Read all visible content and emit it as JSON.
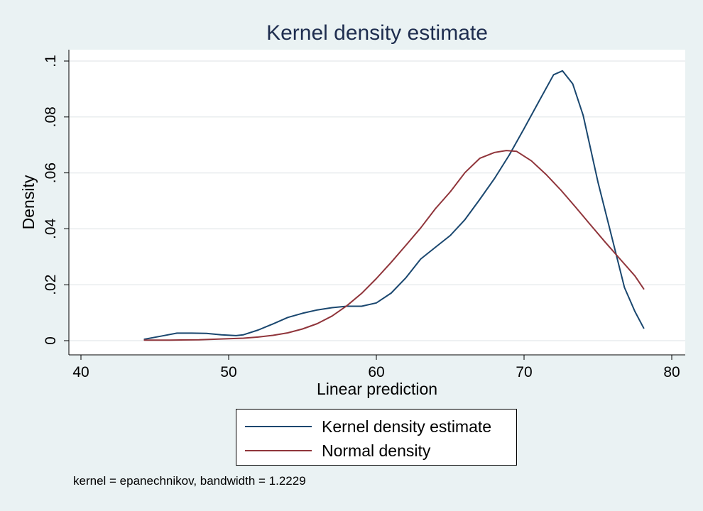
{
  "chart_data": {
    "type": "line",
    "title": "Kernel density estimate",
    "xlabel": "Linear prediction",
    "ylabel": "Density",
    "xlim": [
      40,
      80
    ],
    "ylim": [
      0,
      0.1
    ],
    "xticks": [
      40,
      50,
      60,
      70,
      80
    ],
    "xtick_labels": [
      "40",
      "50",
      "60",
      "70",
      "80"
    ],
    "yticks": [
      0,
      0.02,
      0.04,
      0.06,
      0.08,
      0.1
    ],
    "ytick_labels": [
      "0",
      ".02",
      ".04",
      ".06",
      ".08",
      ".1"
    ],
    "grid": true,
    "legend_position": "bottom",
    "series": [
      {
        "name": "Kernel density estimate",
        "color": "#1a476f",
        "x": [
          44.3,
          45.5,
          46.5,
          47.5,
          48.5,
          49.5,
          50.5,
          51.0,
          52.0,
          53.0,
          54.0,
          55.0,
          56.0,
          57.0,
          58.0,
          59.0,
          60.0,
          61.0,
          62.0,
          63.0,
          64.0,
          65.0,
          66.0,
          67.0,
          68.0,
          69.0,
          70.0,
          71.0,
          72.0,
          72.6,
          73.3,
          74.0,
          75.0,
          76.0,
          76.8,
          77.5,
          78.1
        ],
        "y": [
          0.0005,
          0.0017,
          0.0027,
          0.0027,
          0.0026,
          0.0021,
          0.0018,
          0.0021,
          0.0038,
          0.006,
          0.0083,
          0.0098,
          0.011,
          0.0118,
          0.0123,
          0.0123,
          0.0135,
          0.017,
          0.0225,
          0.0292,
          0.0334,
          0.0376,
          0.0433,
          0.0505,
          0.058,
          0.0664,
          0.0758,
          0.0855,
          0.0951,
          0.0965,
          0.0918,
          0.0806,
          0.0568,
          0.0358,
          0.019,
          0.0105,
          0.0045
        ]
      },
      {
        "name": "Normal density",
        "color": "#90353b",
        "x": [
          44.3,
          46.0,
          48.0,
          50.0,
          51.0,
          52.0,
          53.0,
          54.0,
          55.0,
          56.0,
          57.0,
          58.0,
          59.0,
          60.0,
          61.0,
          62.0,
          63.0,
          64.0,
          65.0,
          66.0,
          67.0,
          68.0,
          68.8,
          69.5,
          70.5,
          71.5,
          72.5,
          73.5,
          74.5,
          75.5,
          76.5,
          77.5,
          78.1
        ],
        "y": [
          0.0002,
          0.0002,
          0.0003,
          0.0007,
          0.0009,
          0.0013,
          0.0019,
          0.0028,
          0.0042,
          0.0061,
          0.0088,
          0.0125,
          0.0169,
          0.0222,
          0.028,
          0.0341,
          0.0403,
          0.0472,
          0.0532,
          0.0601,
          0.0652,
          0.0673,
          0.068,
          0.0677,
          0.0643,
          0.0594,
          0.0538,
          0.0477,
          0.0414,
          0.0352,
          0.0292,
          0.0232,
          0.0185
        ]
      }
    ]
  },
  "note": "kernel = epanechnikov, bandwidth = 1.2229"
}
